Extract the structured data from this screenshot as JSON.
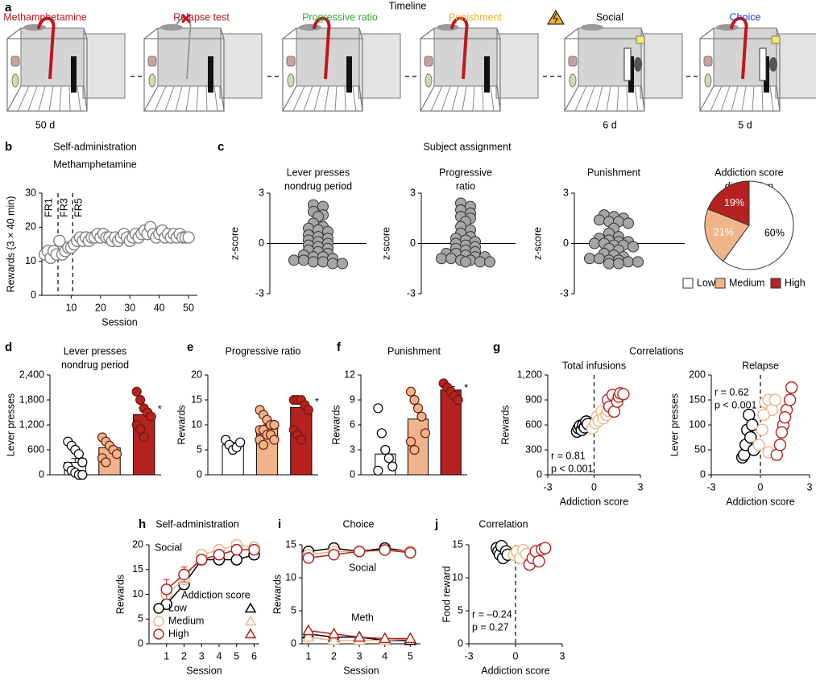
{
  "timeline": {
    "panel": "a",
    "title": "Timeline",
    "stages": [
      {
        "label": "Methamphetamine",
        "color": "#c0171c",
        "duration": "50 d"
      },
      {
        "label": "Relapse test",
        "color": "#c0171c"
      },
      {
        "label": "Progressive ratio",
        "color": "#3aa53a"
      },
      {
        "label": "Punishment",
        "color": "#f0b429"
      },
      {
        "label": "Social",
        "color": "#000000",
        "duration": "6 d"
      },
      {
        "label": "Choice",
        "color": "#1f3fd6",
        "duration": "5 d"
      }
    ]
  },
  "chart_data": [
    {
      "panel": "b",
      "type": "scatter",
      "title": "Self-administration",
      "subtitle": "Methamphetamine",
      "x": [
        1,
        2,
        3,
        4,
        5,
        6,
        7,
        8,
        9,
        10,
        11,
        12,
        13,
        14,
        15,
        16,
        17,
        18,
        19,
        20,
        21,
        22,
        23,
        24,
        25,
        26,
        27,
        28,
        29,
        30,
        31,
        32,
        33,
        34,
        35,
        36,
        37,
        38,
        39,
        40,
        41,
        42,
        43,
        44,
        45,
        46,
        47,
        48,
        49,
        50
      ],
      "values": [
        12,
        13,
        11,
        13,
        12,
        16,
        12,
        13,
        14,
        14,
        15,
        16,
        17,
        16,
        17,
        16,
        17,
        17,
        18,
        17,
        18,
        17,
        17,
        16,
        17,
        16,
        17,
        18,
        17,
        16,
        17,
        18,
        17,
        18,
        19,
        18,
        20,
        18,
        17,
        18,
        19,
        17,
        18,
        17,
        18,
        17,
        18,
        17,
        17,
        17
      ],
      "color": "#808080",
      "xlim": [
        0,
        53
      ],
      "xticks": [
        10,
        20,
        30,
        40,
        50
      ],
      "ylim": [
        0,
        30
      ],
      "yticks": [
        0,
        10,
        20,
        30
      ],
      "ylabel": "Rewards (3 × 40 min)",
      "xlabel": "Session",
      "vlines": [
        5.5,
        10.5
      ],
      "phase_labels": [
        "FR1",
        "FR3",
        "FR5"
      ]
    },
    {
      "panel": "c",
      "header": "Subject assignment",
      "type": "swarm",
      "title": [
        "Lever presses",
        "nondrug period"
      ],
      "values": [
        2.3,
        2.2,
        1.9,
        1.7,
        1.6,
        1.2,
        1.0,
        0.9,
        0.8,
        0.7,
        0.5,
        0.4,
        0.3,
        0.2,
        0.1,
        0,
        -0.1,
        -0.2,
        -0.3,
        -0.4,
        -0.5,
        -0.6,
        -0.7,
        -0.8,
        -0.8,
        -0.9,
        -1.0,
        -1.0,
        -1.1,
        -1.1,
        -1.2,
        -1.2
      ],
      "color": "#a6a6a6",
      "ylim": [
        -3,
        3
      ],
      "yticks": [
        -3,
        0,
        3
      ],
      "ylabel": "z-score"
    },
    {
      "type": "swarm",
      "title": [
        "Progressive",
        "ratio"
      ],
      "values": [
        2.4,
        2.2,
        2.0,
        1.8,
        1.6,
        1.5,
        1.3,
        1.0,
        0.8,
        0.6,
        0.4,
        0.3,
        0.2,
        0.1,
        0,
        -0.1,
        -0.2,
        -0.3,
        -0.4,
        -0.5,
        -0.6,
        -0.6,
        -0.7,
        -0.8,
        -0.8,
        -0.9,
        -0.9,
        -1.0,
        -1.0,
        -1.1,
        -1.1,
        -1.1
      ],
      "color": "#a6a6a6",
      "ylim": [
        -3,
        3
      ],
      "yticks": [
        -3,
        0,
        3
      ],
      "ylabel": "z-score"
    },
    {
      "type": "swarm",
      "title": "Punishment",
      "values": [
        1.7,
        1.6,
        1.5,
        1.4,
        1.3,
        1.3,
        1.2,
        0.9,
        0.6,
        0.4,
        0.3,
        0.2,
        0.1,
        0.1,
        0,
        0,
        -0.1,
        -0.1,
        -0.2,
        -0.3,
        -0.4,
        -0.6,
        -0.7,
        -0.8,
        -0.9,
        -0.9,
        -1.0,
        -1.0,
        -1.1,
        -1.1,
        -1.2,
        -1.2
      ],
      "color": "#a6a6a6",
      "ylim": [
        -3,
        3
      ],
      "yticks": [
        -3,
        0,
        3
      ],
      "ylabel": "z-score"
    },
    {
      "type": "pie",
      "title": [
        "Addiction score",
        "distribution"
      ],
      "categories": [
        "Low",
        "Medium",
        "High"
      ],
      "values": [
        60,
        21,
        19
      ],
      "value_labels": [
        "60%",
        "21%",
        "19%"
      ],
      "colors": [
        "#ffffff",
        "#f0b48a",
        "#b5221f"
      ],
      "legend": "bottom"
    },
    {
      "panel": "d",
      "type": "bar",
      "title": [
        "Lever presses",
        "nondrug period"
      ],
      "values": [
        300,
        650,
        1450
      ],
      "errors": [
        90,
        80,
        150
      ],
      "points": [
        [
          800,
          700,
          600,
          500,
          300,
          200,
          100,
          50,
          0,
          0
        ],
        [
          900,
          800,
          700,
          600,
          500,
          400,
          300
        ],
        [
          2000,
          1800,
          1600,
          1500,
          1400,
          1200,
          1100,
          900
        ]
      ],
      "colors": [
        "#ffffff",
        "#f0b48a",
        "#b5221f"
      ],
      "asterisk": "*",
      "ylim": [
        0,
        2400
      ],
      "yticks": [
        0,
        600,
        {
          "value": 1200,
          "label": "1,200"
        },
        {
          "value": 1800,
          "label": "1,800"
        },
        {
          "value": 2400,
          "label": "2,400"
        }
      ],
      "ylabel": "Lever presses"
    },
    {
      "panel": "e",
      "type": "bar",
      "title": "Progressive ratio",
      "values": [
        6,
        9.4,
        13.5
      ],
      "errors": [
        0.5,
        0.6,
        1.3
      ],
      "points": [
        [
          7,
          6,
          5,
          5.5,
          6.5
        ],
        [
          13,
          12,
          11,
          10,
          10,
          9,
          9,
          8,
          8,
          7,
          7,
          6
        ],
        [
          15,
          15,
          15,
          14,
          13,
          9,
          8,
          7
        ]
      ],
      "colors": [
        "#ffffff",
        "#f0b48a",
        "#b5221f"
      ],
      "asterisk": "*",
      "ylim": [
        0,
        20
      ],
      "yticks": [
        0,
        5,
        10,
        15,
        20
      ],
      "ylabel": "Rewards"
    },
    {
      "panel": "f",
      "type": "bar",
      "title": "Punishment",
      "values": [
        2.5,
        6.7,
        10.2
      ],
      "errors": [
        0.8,
        1,
        0.4
      ],
      "points": [
        [
          8,
          5,
          3,
          2,
          1,
          0.5
        ],
        [
          10,
          9,
          8,
          7,
          5,
          4,
          3
        ],
        [
          11,
          10.5,
          10,
          9.5,
          9
        ]
      ],
      "colors": [
        "#ffffff",
        "#f0b48a",
        "#b5221f"
      ],
      "asterisk": "*",
      "ylim": [
        0,
        12
      ],
      "yticks": [
        0,
        3,
        6,
        9,
        12
      ],
      "ylabel": "Rewards"
    },
    {
      "panel": "g",
      "header": "Correlations",
      "type": "scatter",
      "title": "Total infusions",
      "series": [
        {
          "color": "#000000",
          "x": [
            -1.1,
            -1.0,
            -0.9,
            -0.8,
            -0.7,
            -0.6,
            -0.5,
            -0.4
          ],
          "values": [
            520,
            560,
            590,
            540,
            600,
            570,
            640,
            610
          ]
        },
        {
          "color": "#f0b48a",
          "x": [
            -0.1,
            0.1,
            0.2,
            0.3,
            0.5,
            0.6,
            0.8,
            0.9
          ],
          "values": [
            560,
            620,
            700,
            650,
            760,
            680,
            720,
            770
          ]
        },
        {
          "color": "#b5221f",
          "x": [
            0.9,
            1.0,
            1.2,
            1.3,
            1.5,
            1.6,
            1.7,
            1.9
          ],
          "values": [
            900,
            820,
            960,
            760,
            880,
            940,
            980,
            970
          ]
        }
      ],
      "xlim": [
        -3,
        3
      ],
      "xticks": [
        -3,
        0,
        3
      ],
      "ylim": [
        0,
        1200
      ],
      "yticks": [
        0,
        300,
        600,
        900,
        {
          "value": 1200,
          "label": "1,200"
        }
      ],
      "ylabel": "Rewards",
      "xlabel": "Addiction score",
      "vlines": [
        0
      ],
      "annotations": [
        "r = 0.81",
        "p < 0.001"
      ]
    },
    {
      "type": "scatter",
      "title": "Relapse",
      "series": [
        {
          "color": "#000000",
          "x": [
            -1.1,
            -1.0,
            -0.9,
            -0.8,
            -0.7,
            -0.6,
            -0.5,
            -0.4
          ],
          "values": [
            35,
            40,
            60,
            90,
            120,
            75,
            100,
            50
          ]
        },
        {
          "color": "#f0b48a",
          "x": [
            -0.1,
            0.1,
            0.3,
            0.5,
            0.7,
            0.9,
            0.5,
            0.2
          ],
          "values": [
            60,
            90,
            145,
            150,
            130,
            150,
            45,
            120
          ]
        },
        {
          "color": "#b5221f",
          "x": [
            1.0,
            1.2,
            1.4,
            1.6,
            1.8,
            1.9,
            1.5,
            1.3
          ],
          "values": [
            40,
            60,
            100,
            130,
            150,
            175,
            115,
            85
          ]
        }
      ],
      "xlim": [
        -3,
        3
      ],
      "xticks": [
        -3,
        0,
        3
      ],
      "ylim": [
        0,
        200
      ],
      "yticks": [
        0,
        50,
        100,
        150,
        200
      ],
      "ylabel": "Lever presses",
      "xlabel": "Addiction score",
      "vlines": [
        0
      ],
      "annotations": [
        "r = 0.62",
        "p < 0.001"
      ]
    },
    {
      "panel": "h",
      "type": "line",
      "title": "Self-administration",
      "x": [
        1,
        2,
        3,
        4,
        5,
        6
      ],
      "series": [
        {
          "name": "Low",
          "color": "#000000",
          "marker": "circle",
          "values": [
            8,
            12,
            17,
            17,
            17,
            18
          ],
          "errors": [
            1,
            1,
            1,
            1,
            1,
            1
          ]
        },
        {
          "name": "Medium",
          "color": "#f0b48a",
          "marker": "circle",
          "values": [
            10,
            13,
            18,
            19,
            20,
            19.5
          ],
          "errors": [
            1,
            1,
            1,
            1,
            0.8,
            1
          ]
        },
        {
          "name": "High",
          "color": "#b5221f",
          "marker": "circle",
          "values": [
            11,
            14,
            17,
            18,
            19,
            19
          ],
          "errors": [
            2,
            1.5,
            1,
            1,
            1,
            1
          ]
        }
      ],
      "xlim": [
        0,
        6.3
      ],
      "xticks": [
        1,
        2,
        3,
        4,
        5,
        6
      ],
      "ylim": [
        0,
        20
      ],
      "yticks": [
        0,
        5,
        10,
        15,
        20
      ],
      "ylabel": "Rewards",
      "xlabel": "Session",
      "annotations": [
        "Social"
      ],
      "legend_title": "Addiction score",
      "legend": "bottom-right",
      "legend_markers": [
        "circle",
        "triangle"
      ]
    },
    {
      "panel": "i",
      "type": "line",
      "title": "Choice",
      "x": [
        1,
        2,
        3,
        4,
        5
      ],
      "series": [
        {
          "color": "#000000",
          "marker": "circle",
          "values": [
            14,
            14.5,
            14,
            14.5,
            14
          ]
        },
        {
          "color": "#f0b48a",
          "marker": "circle",
          "values": [
            13.5,
            14,
            14,
            14.2,
            14
          ]
        },
        {
          "color": "#b5221f",
          "marker": "circle",
          "values": [
            13,
            13.5,
            14,
            14.2,
            13.8
          ]
        },
        {
          "color": "#000000",
          "marker": "triangle",
          "values": [
            1.5,
            1,
            1,
            0.5,
            0.5
          ]
        },
        {
          "color": "#f0b48a",
          "marker": "triangle",
          "values": [
            1,
            0.5,
            0.5,
            0.5,
            0.8
          ]
        },
        {
          "color": "#b5221f",
          "marker": "triangle",
          "values": [
            2,
            1.5,
            1,
            0.8,
            0.8
          ]
        }
      ],
      "xlim": [
        0.75,
        5.4
      ],
      "xticks": [
        1,
        2,
        3,
        4,
        5
      ],
      "ylim": [
        0,
        15
      ],
      "yticks": [
        0,
        5,
        10,
        15
      ],
      "ylabel": "Rewards",
      "xlabel": "Session",
      "annotations": [
        "Social",
        "Meth"
      ]
    },
    {
      "panel": "j",
      "type": "scatter",
      "title": "Correlation",
      "series": [
        {
          "color": "#000000",
          "x": [
            -1.2,
            -1.1,
            -1.0,
            -0.9,
            -0.8,
            -0.6,
            -0.5
          ],
          "values": [
            14.5,
            14,
            13.5,
            14.8,
            13,
            14,
            13.5
          ]
        },
        {
          "color": "#f0b48a",
          "x": [
            -0.1,
            0.1,
            0.3,
            0.5,
            0.7
          ],
          "values": [
            13.5,
            14,
            13,
            14.2,
            13.6
          ]
        },
        {
          "color": "#b5221f",
          "x": [
            0.9,
            1.1,
            1.3,
            1.5,
            1.7,
            1.9
          ],
          "values": [
            12,
            13,
            14,
            12.5,
            14.3,
            14.5
          ]
        }
      ],
      "xlim": [
        -3,
        3
      ],
      "xticks": [
        -3,
        0,
        3
      ],
      "ylim": [
        0,
        15
      ],
      "yticks": [
        0,
        5,
        10,
        15
      ],
      "ylabel": "Food reward",
      "xlabel": "Addiction score",
      "vlines": [
        0
      ],
      "annotations": [
        "r = –0.24",
        "p = 0.27"
      ]
    }
  ]
}
